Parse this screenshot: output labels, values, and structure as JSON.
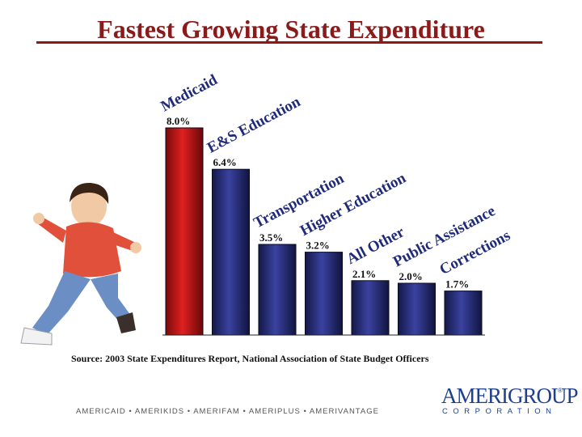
{
  "slide": {
    "title": "Fastest Growing State Expenditure",
    "source": "Source: 2003 State Expenditures Report, National Association of State Budget Officers",
    "footer_brands": "AMERICAID • AMERIKIDS • AMERIFAM • AMERIPLUS • AMERIVANTAGE",
    "logo_main": "AMERIGROUP",
    "logo_registered": "®",
    "logo_sub": "CORPORATION"
  },
  "chart_data": {
    "type": "bar",
    "title": "Fastest Growing State Expenditure",
    "categories": [
      "Medicaid",
      "E&S Education",
      "Transportation",
      "Higher Education",
      "All Other",
      "Public Assistance",
      "Corrections"
    ],
    "values": [
      8.0,
      6.4,
      3.5,
      3.2,
      2.1,
      2.0,
      1.7
    ],
    "value_labels": [
      "8.0%",
      "6.4%",
      "3.5%",
      "3.2%",
      "2.1%",
      "2.0%",
      "1.7%"
    ],
    "xlabel": "",
    "ylabel": "",
    "ylim": [
      0,
      8.0
    ],
    "grid": false,
    "legend": "none",
    "colors": {
      "highlight": "#d01818",
      "bar": "#2a2f7c",
      "label": "#1f2a7a",
      "title": "#8b1a1a"
    }
  },
  "decoration": {
    "photo_icon": "child-photo-icon"
  }
}
